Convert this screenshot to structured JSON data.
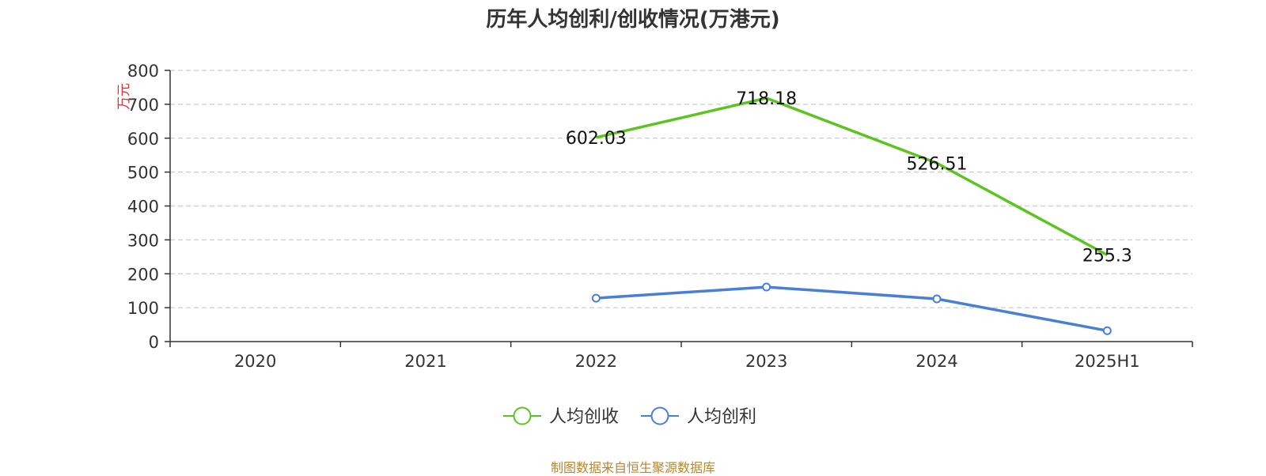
{
  "chart_data": {
    "type": "line",
    "title": "历年人均创利/创收情况(万港元)",
    "ylabel": "万元",
    "xlabel": "",
    "categories": [
      "2020",
      "2021",
      "2022",
      "2023",
      "2024",
      "2025H1"
    ],
    "ylim": [
      0,
      800
    ],
    "yticks": [
      0,
      100,
      200,
      300,
      400,
      500,
      600,
      700,
      800
    ],
    "grid": true,
    "legend_position": "bottom-center",
    "series": [
      {
        "name": "人均创收",
        "color": "#5cc41e",
        "values": [
          null,
          null,
          602.03,
          718.18,
          526.51,
          255.3
        ],
        "labels": [
          "",
          "",
          "602.03",
          "718.18",
          "526.51",
          "255.3"
        ],
        "show_labels": true,
        "show_markers": false
      },
      {
        "name": "人均创利",
        "color": "#4a7fd8",
        "values": [
          null,
          null,
          128,
          161,
          126,
          32
        ],
        "labels": [],
        "show_labels": false,
        "show_markers": true
      }
    ]
  },
  "source_note": "制图数据来自恒生聚源数据库",
  "colors": {
    "axis": "#333333",
    "grid": "#cccccc",
    "ylabel": "#e03030",
    "source": "#b8862b"
  }
}
